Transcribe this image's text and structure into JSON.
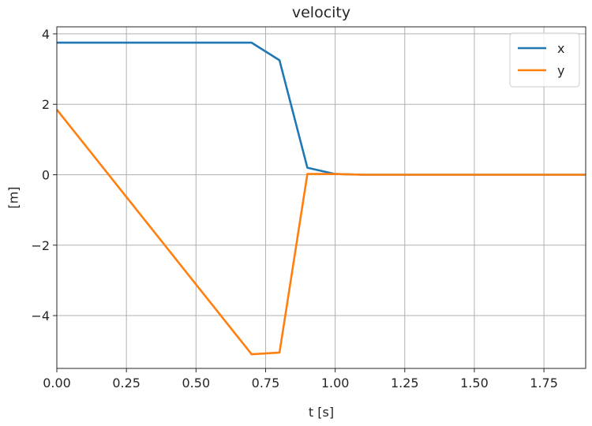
{
  "chart_data": {
    "type": "line",
    "title": "velocity",
    "xlabel": "t [s]",
    "ylabel": "[m]",
    "xlim": [
      0.0,
      1.9
    ],
    "ylim": [
      -5.5,
      4.2
    ],
    "xticks": [
      0.0,
      0.25,
      0.5,
      0.75,
      1.0,
      1.25,
      1.5,
      1.75
    ],
    "xtick_labels": [
      "0.00",
      "0.25",
      "0.50",
      "0.75",
      "1.00",
      "1.25",
      "1.50",
      "1.75"
    ],
    "yticks": [
      4,
      2,
      0,
      -2,
      -4
    ],
    "ytick_labels": [
      "4",
      "2",
      "0",
      "−2",
      "−4"
    ],
    "grid": true,
    "legend_position": "top-right",
    "series": [
      {
        "name": "x",
        "color": "#1f77b4",
        "x": [
          0.0,
          0.7,
          0.8,
          0.9,
          1.0,
          1.1,
          1.9
        ],
        "y": [
          3.75,
          3.75,
          3.25,
          0.2,
          0.02,
          0.0,
          0.0
        ]
      },
      {
        "name": "y",
        "color": "#ff7f0e",
        "x": [
          0.0,
          0.7,
          0.8,
          0.9,
          1.0,
          1.1,
          1.9
        ],
        "y": [
          1.85,
          -5.1,
          -5.05,
          0.02,
          0.02,
          0.0,
          0.0
        ]
      }
    ]
  }
}
